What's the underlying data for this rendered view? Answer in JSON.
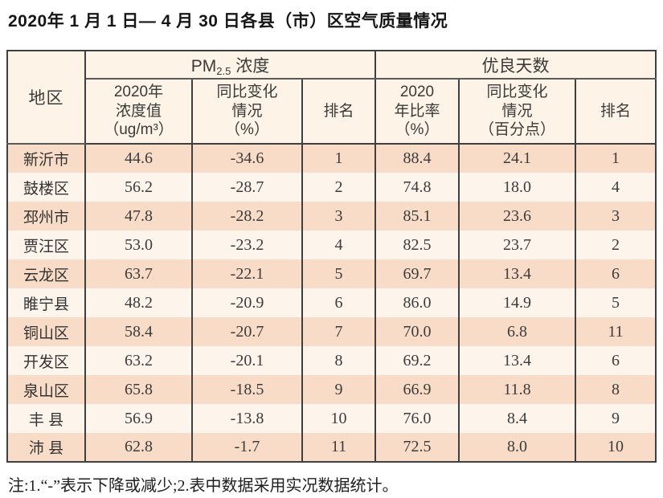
{
  "page": {
    "title": "2020年 1 月 1 日— 4 月 30 日各县（市）区空气质量情况",
    "note": "注:1.“-”表示下降或减少;2.表中数据采用实况数据统计。"
  },
  "colors": {
    "row_odd_bg": "#f8dcc7",
    "row_even_bg": "#fdf4ec",
    "header_bg": "#fdf3e6",
    "border": "#3f3f3f",
    "text": "#3c3c3c"
  },
  "table": {
    "corner_header": "地区",
    "group_pm25": {
      "prefix": "PM",
      "sub": "2.5",
      "suffix": " 浓度"
    },
    "group_days": "优良天数",
    "sub_headers": {
      "pm_value": "2020年\n浓度值\n（ug/m³）",
      "pm_change": "同比变化\n情况\n（%）",
      "pm_rank": "排名",
      "days_rate": "2020\n年比率\n（%）",
      "days_change": "同比变化\n情况\n（百分点）",
      "days_rank": "排名"
    },
    "rows": [
      {
        "region": "新沂市",
        "pm_value": "44.6",
        "pm_change": "-34.6",
        "pm_rank": "1",
        "days_rate": "88.4",
        "days_change": "24.1",
        "days_rank": "1"
      },
      {
        "region": "鼓楼区",
        "pm_value": "56.2",
        "pm_change": "-28.7",
        "pm_rank": "2",
        "days_rate": "74.8",
        "days_change": "18.0",
        "days_rank": "4"
      },
      {
        "region": "邳州市",
        "pm_value": "47.8",
        "pm_change": "-28.2",
        "pm_rank": "3",
        "days_rate": "85.1",
        "days_change": "23.6",
        "days_rank": "3"
      },
      {
        "region": "贾汪区",
        "pm_value": "53.0",
        "pm_change": "-23.2",
        "pm_rank": "4",
        "days_rate": "82.5",
        "days_change": "23.7",
        "days_rank": "2"
      },
      {
        "region": "云龙区",
        "pm_value": "63.7",
        "pm_change": "-22.1",
        "pm_rank": "5",
        "days_rate": "69.7",
        "days_change": "13.4",
        "days_rank": "6"
      },
      {
        "region": "睢宁县",
        "pm_value": "48.2",
        "pm_change": "-20.9",
        "pm_rank": "6",
        "days_rate": "86.0",
        "days_change": "14.9",
        "days_rank": "5"
      },
      {
        "region": "铜山区",
        "pm_value": "58.4",
        "pm_change": "-20.7",
        "pm_rank": "7",
        "days_rate": "70.0",
        "days_change": "6.8",
        "days_rank": "11"
      },
      {
        "region": "开发区",
        "pm_value": "63.2",
        "pm_change": "-20.1",
        "pm_rank": "8",
        "days_rate": "69.2",
        "days_change": "13.4",
        "days_rank": "6"
      },
      {
        "region": "泉山区",
        "pm_value": "65.8",
        "pm_change": "-18.5",
        "pm_rank": "9",
        "days_rate": "66.9",
        "days_change": "11.8",
        "days_rank": "8"
      },
      {
        "region": "丰 县",
        "pm_value": "56.9",
        "pm_change": "-13.8",
        "pm_rank": "10",
        "days_rate": "76.0",
        "days_change": "8.4",
        "days_rank": "9"
      },
      {
        "region": "沛 县",
        "pm_value": "62.8",
        "pm_change": "-1.7",
        "pm_rank": "11",
        "days_rate": "72.5",
        "days_change": "8.0",
        "days_rank": "10"
      }
    ]
  }
}
